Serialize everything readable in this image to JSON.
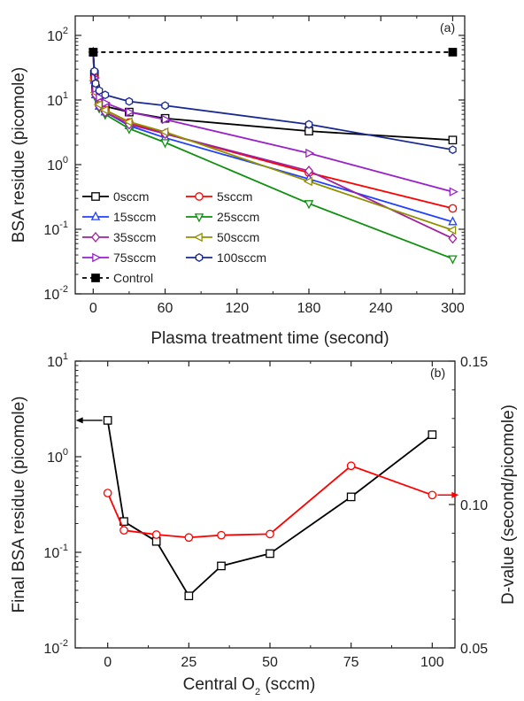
{
  "chart_data": [
    {
      "type": "line",
      "panel_label": "(a)",
      "xlabel": "Plasma treatment time (second)",
      "ylabel": "BSA residue (picomole)",
      "xlim": [
        -15,
        310
      ],
      "ylim": [
        0.01,
        200
      ],
      "yscale": "log",
      "xticks": [
        0,
        60,
        120,
        180,
        240,
        300
      ],
      "xtick_labels": [
        "0",
        "60",
        "120",
        "180",
        "240",
        "300"
      ],
      "yticks": [
        0.01,
        0.1,
        1,
        10,
        100
      ],
      "ytick_labels": [
        {
          "base": "10",
          "exp": "-2"
        },
        {
          "base": "10",
          "exp": "-1"
        },
        {
          "base": "10",
          "exp": "0"
        },
        {
          "base": "10",
          "exp": "1"
        },
        {
          "base": "10",
          "exp": "2"
        }
      ],
      "legend_position": "lower-left",
      "series": [
        {
          "name": "0sccm",
          "color": "#000000",
          "marker": "square",
          "dashed": false,
          "x": [
            0,
            1,
            2,
            5,
            10,
            30,
            60,
            180,
            300
          ],
          "y": [
            55,
            25,
            15,
            10,
            8,
            6.5,
            5.2,
            3.3,
            2.4
          ]
        },
        {
          "name": "5sccm",
          "color": "#ff0000",
          "marker": "circle",
          "dashed": false,
          "x": [
            0,
            1,
            2,
            5,
            10,
            30,
            60,
            180,
            300
          ],
          "y": [
            55,
            22,
            14,
            9,
            7,
            4.5,
            3.0,
            0.75,
            0.21
          ]
        },
        {
          "name": "15sccm",
          "color": "#2040ff",
          "marker": "triangle-up",
          "dashed": false,
          "x": [
            0,
            1,
            2,
            5,
            10,
            30,
            60,
            180,
            300
          ],
          "y": [
            55,
            20,
            12,
            8,
            6.5,
            4.0,
            2.6,
            0.6,
            0.13
          ]
        },
        {
          "name": "25sccm",
          "color": "#109010",
          "marker": "triangle-down",
          "dashed": false,
          "x": [
            0,
            1,
            2,
            5,
            10,
            30,
            60,
            180,
            300
          ],
          "y": [
            55,
            18,
            11,
            7.5,
            6,
            3.6,
            2.2,
            0.25,
            0.035
          ]
        },
        {
          "name": "35sccm",
          "color": "#a020a0",
          "marker": "diamond",
          "dashed": false,
          "x": [
            0,
            1,
            2,
            5,
            10,
            30,
            60,
            180,
            300
          ],
          "y": [
            55,
            19,
            12,
            8,
            6.5,
            4.2,
            3.0,
            0.8,
            0.072
          ]
        },
        {
          "name": "50sccm",
          "color": "#909000",
          "marker": "triangle-left",
          "dashed": false,
          "x": [
            0,
            1,
            2,
            5,
            10,
            30,
            60,
            180,
            300
          ],
          "y": [
            55,
            20,
            13,
            8.5,
            7,
            4.6,
            3.2,
            0.55,
            0.097
          ]
        },
        {
          "name": "75sccm",
          "color": "#9a20c8",
          "marker": "triangle-right",
          "dashed": false,
          "x": [
            0,
            1,
            2,
            5,
            10,
            30,
            60,
            180,
            300
          ],
          "y": [
            55,
            22,
            15,
            11,
            9,
            6.5,
            5.0,
            1.5,
            0.38
          ]
        },
        {
          "name": "100sccm",
          "color": "#1a2a90",
          "marker": "hexagon",
          "dashed": false,
          "x": [
            0,
            1,
            2,
            5,
            10,
            30,
            60,
            180,
            300
          ],
          "y": [
            55,
            28,
            18,
            14,
            12,
            9.5,
            8.2,
            4.2,
            1.7
          ]
        },
        {
          "name": "Control",
          "color": "#000000",
          "marker": "filled-square",
          "dashed": true,
          "x": [
            0,
            300
          ],
          "y": [
            55,
            55
          ]
        }
      ]
    },
    {
      "type": "line",
      "panel_label": "(b)",
      "xlabel_main": "Central O",
      "xlabel_sub": "2",
      "xlabel_tail": " (sccm)",
      "ylabel_left": "Final BSA residue (picomole)",
      "ylabel_right": "D-value (second/picomole)",
      "xlim": [
        -10,
        107
      ],
      "ylim_left": [
        0.01,
        10
      ],
      "yscale_left": "log",
      "ylim_right": [
        0.05,
        0.15
      ],
      "xticks": [
        0,
        25,
        50,
        75,
        100
      ],
      "xtick_labels": [
        "0",
        "25",
        "50",
        "75",
        "100"
      ],
      "yticks_left": [
        0.01,
        0.1,
        1,
        10
      ],
      "ytick_labels_left": [
        {
          "base": "10",
          "exp": "-2"
        },
        {
          "base": "10",
          "exp": "-1"
        },
        {
          "base": "10",
          "exp": "0"
        },
        {
          "base": "10",
          "exp": "1"
        }
      ],
      "yticks_right": [
        0.05,
        0.1,
        0.15
      ],
      "ytick_labels_right": [
        "0.05",
        "0.10",
        "0.15"
      ],
      "series": [
        {
          "axis": "left",
          "color": "#000000",
          "marker": "square",
          "x": [
            0,
            5,
            15,
            25,
            35,
            50,
            75,
            100
          ],
          "y": [
            2.4,
            0.21,
            0.13,
            0.035,
            0.072,
            0.097,
            0.38,
            1.7
          ]
        },
        {
          "axis": "right",
          "color": "#ff0000",
          "marker": "circle",
          "x": [
            0,
            5,
            15,
            25,
            35,
            50,
            75,
            100
          ],
          "y": [
            0.104,
            0.091,
            0.0895,
            0.0885,
            0.0893,
            0.0897,
            0.1135,
            0.1033
          ]
        }
      ]
    }
  ]
}
